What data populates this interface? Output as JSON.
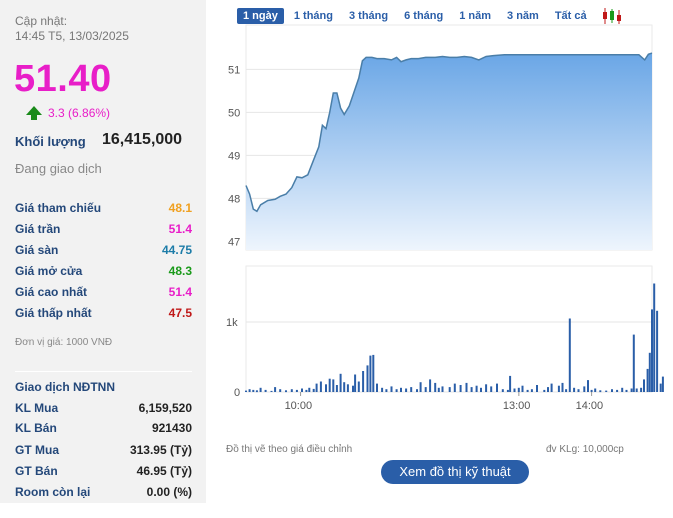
{
  "header": {
    "update_label": "Cập nhật:",
    "update_time": "14:45 T5, 13/03/2025"
  },
  "quote": {
    "price": "51.40",
    "change": "3.3 (6.86%)",
    "volume_label": "Khối lượng",
    "volume_value": "16,415,000",
    "status": "Đang giao dịch"
  },
  "price_rows": [
    {
      "label": "Giá tham chiếu",
      "value": "48.1",
      "color": "#f0a020"
    },
    {
      "label": "Giá trần",
      "value": "51.4",
      "color": "#e81ec8"
    },
    {
      "label": "Giá sàn",
      "value": "44.75",
      "color": "#1c7ca8"
    },
    {
      "label": "Giá mở cửa",
      "value": "48.3",
      "color": "#1a9a1a"
    },
    {
      "label": "Giá cao nhất",
      "value": "51.4",
      "color": "#e81ec8"
    },
    {
      "label": "Giá thấp nhất",
      "value": "47.5",
      "color": "#c01818"
    }
  ],
  "unit_note": "Đơn vị giá: 1000 VNĐ",
  "foreign": {
    "title": "Giao dịch NĐTNN",
    "rows": [
      {
        "label": "KL Mua",
        "value": "6,159,520"
      },
      {
        "label": "KL Bán",
        "value": "921430"
      },
      {
        "label": "GT Mua",
        "value": "313.95 (Tỷ)"
      },
      {
        "label": "GT Bán",
        "value": "46.95 (Tỷ)"
      },
      {
        "label": "Room còn lại",
        "value": "0.00 (%)"
      }
    ]
  },
  "tabs": [
    "1 ngày",
    "1 tháng",
    "3 tháng",
    "6 tháng",
    "1 năm",
    "3 năm",
    "Tất cả"
  ],
  "active_tab": "1 ngày",
  "chart_note_left": "Đồ thị vẽ theo giá điều chỉnh",
  "chart_note_right": "đv KLg: 10,000cp",
  "tech_button": "Xem đồ thị kỹ thuật",
  "colors": {
    "accent": "#2a5ea8",
    "up": "#e81ec8",
    "line": "#4a7ea8"
  },
  "chart_data": {
    "type": "area",
    "ylim": [
      46.8,
      51.8
    ],
    "yticks": [
      47,
      48,
      49,
      50,
      51
    ],
    "xlim": [
      9.25,
      14.83
    ],
    "xticks": [
      {
        "x": 10,
        "label": "10:00"
      },
      {
        "x": 13,
        "label": "13:00"
      },
      {
        "x": 14,
        "label": "14:00"
      }
    ],
    "price": [
      [
        9.25,
        48.3
      ],
      [
        9.3,
        48.1
      ],
      [
        9.35,
        47.75
      ],
      [
        9.4,
        47.7
      ],
      [
        9.45,
        47.85
      ],
      [
        9.55,
        47.95
      ],
      [
        9.65,
        47.98
      ],
      [
        9.72,
        48.05
      ],
      [
        9.8,
        48.1
      ],
      [
        9.88,
        48.25
      ],
      [
        9.95,
        48.5
      ],
      [
        10.02,
        48.48
      ],
      [
        10.1,
        48.55
      ],
      [
        10.18,
        48.9
      ],
      [
        10.25,
        49.2
      ],
      [
        10.3,
        49.7
      ],
      [
        10.35,
        49.62
      ],
      [
        10.4,
        50.0
      ],
      [
        10.45,
        50.45
      ],
      [
        10.5,
        50.45
      ],
      [
        10.55,
        50.1
      ],
      [
        10.6,
        49.95
      ],
      [
        10.67,
        50.15
      ],
      [
        10.73,
        50.45
      ],
      [
        10.8,
        50.8
      ],
      [
        10.85,
        51.2
      ],
      [
        10.9,
        51.28
      ],
      [
        10.98,
        51.28
      ],
      [
        11.05,
        51.25
      ],
      [
        11.15,
        51.25
      ],
      [
        11.25,
        51.22
      ],
      [
        11.32,
        51.28
      ],
      [
        11.38,
        51.18
      ],
      [
        11.45,
        51.22
      ],
      [
        11.52,
        51.25
      ],
      [
        11.62,
        51.25
      ],
      [
        11.72,
        51.28
      ],
      [
        11.85,
        51.28
      ],
      [
        11.95,
        51.3
      ],
      [
        12.05,
        51.28
      ],
      [
        12.15,
        51.28
      ],
      [
        12.25,
        51.3
      ],
      [
        12.35,
        51.28
      ],
      [
        12.45,
        51.22
      ],
      [
        12.55,
        51.3
      ],
      [
        12.65,
        51.32
      ],
      [
        12.8,
        51.34
      ],
      [
        13.0,
        51.34
      ],
      [
        13.3,
        51.34
      ],
      [
        13.6,
        51.34
      ],
      [
        14.0,
        51.34
      ],
      [
        14.3,
        51.34
      ],
      [
        14.65,
        51.34
      ],
      [
        14.73,
        51.22
      ],
      [
        14.78,
        51.35
      ],
      [
        14.83,
        51.38
      ]
    ],
    "volume_unit": "10,000cp",
    "volume": [
      [
        9.25,
        20
      ],
      [
        9.3,
        40
      ],
      [
        9.35,
        30
      ],
      [
        9.4,
        25
      ],
      [
        9.45,
        60
      ],
      [
        9.52,
        30
      ],
      [
        9.6,
        15
      ],
      [
        9.65,
        70
      ],
      [
        9.72,
        40
      ],
      [
        9.8,
        25
      ],
      [
        9.88,
        40
      ],
      [
        9.95,
        30
      ],
      [
        10.02,
        50
      ],
      [
        10.08,
        30
      ],
      [
        10.12,
        60
      ],
      [
        10.18,
        45
      ],
      [
        10.22,
        120
      ],
      [
        10.28,
        150
      ],
      [
        10.35,
        110
      ],
      [
        10.4,
        190
      ],
      [
        10.45,
        180
      ],
      [
        10.5,
        100
      ],
      [
        10.55,
        260
      ],
      [
        10.6,
        140
      ],
      [
        10.65,
        110
      ],
      [
        10.72,
        90
      ],
      [
        10.75,
        250
      ],
      [
        10.8,
        150
      ],
      [
        10.86,
        300
      ],
      [
        10.92,
        380
      ],
      [
        10.96,
        520
      ],
      [
        11.0,
        530
      ],
      [
        11.05,
        120
      ],
      [
        11.12,
        60
      ],
      [
        11.18,
        40
      ],
      [
        11.25,
        80
      ],
      [
        11.32,
        40
      ],
      [
        11.38,
        60
      ],
      [
        11.45,
        50
      ],
      [
        11.52,
        70
      ],
      [
        11.6,
        40
      ],
      [
        11.65,
        140
      ],
      [
        11.72,
        70
      ],
      [
        11.78,
        180
      ],
      [
        11.85,
        130
      ],
      [
        11.9,
        60
      ],
      [
        11.95,
        80
      ],
      [
        12.05,
        70
      ],
      [
        12.12,
        120
      ],
      [
        12.2,
        100
      ],
      [
        12.28,
        130
      ],
      [
        12.35,
        70
      ],
      [
        12.42,
        90
      ],
      [
        12.48,
        60
      ],
      [
        12.55,
        110
      ],
      [
        12.62,
        80
      ],
      [
        12.7,
        120
      ],
      [
        12.78,
        40
      ],
      [
        12.85,
        30
      ],
      [
        12.88,
        230
      ],
      [
        12.94,
        50
      ],
      [
        13.0,
        60
      ],
      [
        13.05,
        90
      ],
      [
        13.12,
        30
      ],
      [
        13.18,
        40
      ],
      [
        13.25,
        100
      ],
      [
        13.35,
        30
      ],
      [
        13.4,
        70
      ],
      [
        13.45,
        120
      ],
      [
        13.55,
        90
      ],
      [
        13.6,
        130
      ],
      [
        13.65,
        40
      ],
      [
        13.7,
        1050
      ],
      [
        13.76,
        60
      ],
      [
        13.82,
        40
      ],
      [
        13.9,
        80
      ],
      [
        13.95,
        170
      ],
      [
        14.0,
        30
      ],
      [
        14.05,
        50
      ],
      [
        14.12,
        25
      ],
      [
        14.2,
        20
      ],
      [
        14.28,
        40
      ],
      [
        14.35,
        30
      ],
      [
        14.42,
        60
      ],
      [
        14.48,
        30
      ],
      [
        14.55,
        50
      ],
      [
        14.58,
        820
      ],
      [
        14.62,
        50
      ],
      [
        14.68,
        60
      ],
      [
        14.72,
        180
      ],
      [
        14.77,
        330
      ],
      [
        14.8,
        560
      ],
      [
        14.83,
        1180
      ],
      [
        14.86,
        1550
      ],
      [
        14.9,
        1160
      ],
      [
        14.95,
        120
      ],
      [
        14.98,
        220
      ]
    ]
  }
}
